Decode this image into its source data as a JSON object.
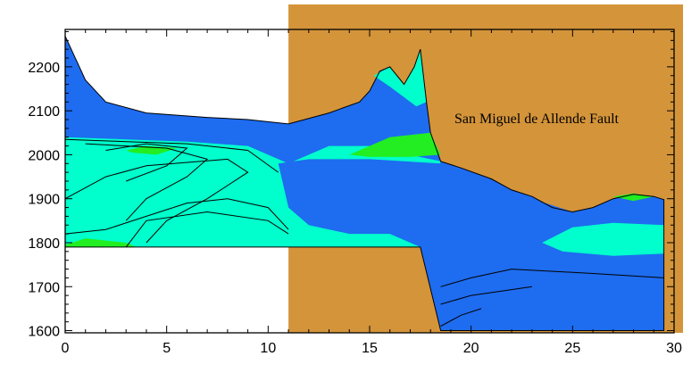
{
  "chart_data": {
    "type": "heatmap",
    "title": "",
    "xlabel": "",
    "ylabel": "",
    "xlim": [
      0,
      30
    ],
    "ylim": [
      1595,
      2285
    ],
    "x_ticks": [
      0,
      5,
      10,
      15,
      20,
      25,
      30
    ],
    "y_ticks": [
      1600,
      1700,
      1800,
      1900,
      2000,
      2100,
      2200
    ],
    "annotation": "San Miguel de Allende Fault",
    "colors": {
      "background_block": "#D4943A",
      "fill_dark": "#1E6CF0",
      "fill_medium": "#00FFCC",
      "fill_light": "#22EE22",
      "contour": "#000000"
    },
    "regions": {
      "background_block": [
        [
          11,
          2285
        ],
        [
          30.5,
          2285
        ],
        [
          30.5,
          1595
        ],
        [
          11,
          1595
        ]
      ],
      "section_outline": [
        [
          0,
          1790
        ],
        [
          0,
          2270
        ],
        [
          1,
          2170
        ],
        [
          2,
          2120
        ],
        [
          4,
          2095
        ],
        [
          7,
          2085
        ],
        [
          9,
          2080
        ],
        [
          11,
          2070
        ],
        [
          13,
          2095
        ],
        [
          14.5,
          2120
        ],
        [
          15,
          2145
        ],
        [
          15.5,
          2190
        ],
        [
          16,
          2200
        ],
        [
          16.7,
          2160
        ],
        [
          17.2,
          2200
        ],
        [
          17.5,
          2240
        ],
        [
          17.8,
          2120
        ],
        [
          18,
          2050
        ],
        [
          18.5,
          1985
        ],
        [
          19.5,
          1970
        ],
        [
          21,
          1945
        ],
        [
          22,
          1920
        ],
        [
          23,
          1905
        ],
        [
          24,
          1880
        ],
        [
          25,
          1870
        ],
        [
          26,
          1880
        ],
        [
          27,
          1900
        ],
        [
          28,
          1910
        ],
        [
          29,
          1905
        ],
        [
          29.5,
          1898
        ],
        [
          29.5,
          1600
        ],
        [
          18.5,
          1600
        ],
        [
          17.5,
          1790
        ]
      ],
      "dark_upper": [
        [
          0,
          2045
        ],
        [
          3,
          2045
        ],
        [
          6,
          2040
        ],
        [
          9,
          2045
        ],
        [
          11,
          2060
        ],
        [
          13,
          2080
        ],
        [
          15,
          2090
        ],
        [
          17,
          2090
        ],
        [
          18,
          2050
        ],
        [
          16,
          2040
        ],
        [
          13,
          2045
        ],
        [
          11,
          2050
        ],
        [
          6,
          2050
        ]
      ],
      "medium_core": [
        [
          0,
          2040
        ],
        [
          3,
          2035
        ],
        [
          6,
          2030
        ],
        [
          9,
          2020
        ],
        [
          11,
          1980
        ],
        [
          13,
          2020
        ],
        [
          15,
          2020
        ],
        [
          18,
          1990
        ],
        [
          18.5,
          1985
        ],
        [
          17.5,
          1790
        ],
        [
          0,
          1790
        ]
      ],
      "dark_lower": [
        [
          10.5,
          1980
        ],
        [
          11,
          1880
        ],
        [
          12,
          1840
        ],
        [
          14,
          1820
        ],
        [
          16,
          1820
        ],
        [
          17.5,
          1790
        ],
        [
          18.5,
          1600
        ],
        [
          29.5,
          1600
        ],
        [
          29.5,
          1895
        ],
        [
          25,
          1870
        ],
        [
          22,
          1915
        ],
        [
          20,
          1950
        ],
        [
          18.5,
          1980
        ],
        [
          15,
          1990
        ],
        [
          12,
          1990
        ]
      ],
      "medium_right_lens": [
        [
          23.5,
          1800
        ],
        [
          24.5,
          1780
        ],
        [
          27,
          1770
        ],
        [
          29.5,
          1775
        ],
        [
          29.5,
          1840
        ],
        [
          27,
          1845
        ],
        [
          25,
          1835
        ]
      ],
      "medium_upper_right": [
        [
          15.2,
          2180
        ],
        [
          16,
          2200
        ],
        [
          16.7,
          2160
        ],
        [
          17.2,
          2200
        ],
        [
          17.5,
          2240
        ],
        [
          17.8,
          2120
        ],
        [
          17.3,
          2110
        ],
        [
          16,
          2155
        ]
      ],
      "light_patch_center": [
        [
          14,
          2000
        ],
        [
          16,
          2040
        ],
        [
          18,
          2050
        ],
        [
          18.5,
          2000
        ],
        [
          17,
          1995
        ],
        [
          15,
          1995
        ]
      ],
      "light_patch_left": [
        [
          3,
          2010
        ],
        [
          4,
          2020
        ],
        [
          5.5,
          2015
        ],
        [
          4.5,
          2000
        ],
        [
          3.3,
          2005
        ]
      ],
      "light_patch_bottom": [
        [
          0,
          1795
        ],
        [
          1,
          1810
        ],
        [
          3,
          1800
        ],
        [
          3.5,
          1790
        ],
        [
          0,
          1790
        ]
      ],
      "light_patch_right": [
        [
          27,
          1905
        ],
        [
          28,
          1912
        ],
        [
          29,
          1905
        ],
        [
          28,
          1895
        ]
      ]
    },
    "contours": [
      [
        [
          0,
          2035
        ],
        [
          3,
          2030
        ],
        [
          6,
          2025
        ],
        [
          9,
          2010
        ],
        [
          10.5,
          1960
        ]
      ],
      [
        [
          1,
          2025
        ],
        [
          3,
          2020
        ],
        [
          5,
          2015
        ],
        [
          7,
          1990
        ],
        [
          6,
          1950
        ],
        [
          4,
          1900
        ],
        [
          3,
          1850
        ]
      ],
      [
        [
          2,
          2010
        ],
        [
          4,
          2025
        ],
        [
          6,
          2015
        ],
        [
          5,
          1975
        ],
        [
          3,
          1940
        ]
      ],
      [
        [
          0,
          1900
        ],
        [
          2,
          1950
        ],
        [
          4,
          1975
        ],
        [
          8,
          1990
        ],
        [
          9,
          1960
        ],
        [
          7,
          1900
        ],
        [
          5,
          1850
        ],
        [
          4,
          1800
        ]
      ],
      [
        [
          0,
          1820
        ],
        [
          2,
          1830
        ],
        [
          4,
          1860
        ],
        [
          6,
          1890
        ],
        [
          8,
          1900
        ],
        [
          10,
          1880
        ],
        [
          11,
          1830
        ]
      ],
      [
        [
          3,
          1790
        ],
        [
          4,
          1850
        ],
        [
          7,
          1870
        ],
        [
          10,
          1850
        ],
        [
          11,
          1820
        ]
      ],
      [
        [
          18.5,
          1700
        ],
        [
          20,
          1720
        ],
        [
          22,
          1740
        ],
        [
          26,
          1730
        ],
        [
          29.5,
          1720
        ]
      ],
      [
        [
          18.5,
          1660
        ],
        [
          20,
          1680
        ],
        [
          21.5,
          1690
        ],
        [
          23,
          1700
        ]
      ],
      [
        [
          18.5,
          1610
        ],
        [
          19.5,
          1635
        ],
        [
          20.5,
          1650
        ]
      ]
    ]
  }
}
